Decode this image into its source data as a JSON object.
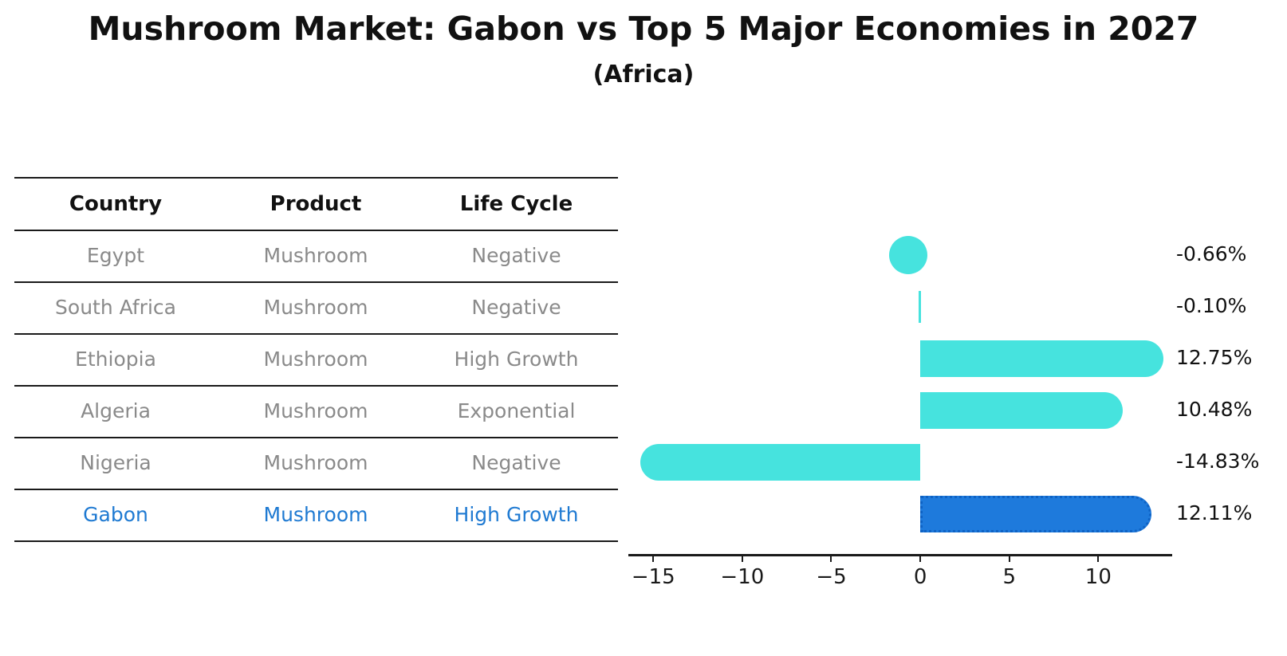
{
  "title": "Mushroom Market: Gabon vs Top 5 Major Economies in 2027",
  "subtitle": "(Africa)",
  "table": {
    "headers": [
      "Country",
      "Product",
      "Life Cycle"
    ],
    "rows": [
      {
        "country": "Egypt",
        "product": "Mushroom",
        "life_cycle": "Negative"
      },
      {
        "country": "South Africa",
        "product": "Mushroom",
        "life_cycle": "Negative"
      },
      {
        "country": "Ethiopia",
        "product": "Mushroom",
        "life_cycle": "High Growth"
      },
      {
        "country": "Algeria",
        "product": "Mushroom",
        "life_cycle": "Exponential"
      },
      {
        "country": "Nigeria",
        "product": "Mushroom",
        "life_cycle": "Negative"
      },
      {
        "country": "Gabon",
        "product": "Mushroom",
        "life_cycle": "High Growth"
      }
    ]
  },
  "chart_data": {
    "type": "bar",
    "orientation": "horizontal",
    "title": "Mushroom Market: Gabon vs Top 5 Major Economies in 2027",
    "subtitle": "(Africa)",
    "categories": [
      "Egypt",
      "South Africa",
      "Ethiopia",
      "Algeria",
      "Nigeria",
      "Gabon"
    ],
    "values": [
      -0.66,
      -0.1,
      12.75,
      10.48,
      -14.83,
      12.11
    ],
    "value_labels": [
      "-0.66%",
      "-0.10%",
      "12.75%",
      "10.48%",
      "-14.83%",
      "12.11%"
    ],
    "x_ticks": {
      "values": [
        -15,
        -10,
        -5,
        0,
        5,
        10
      ],
      "labels": [
        "−15",
        "−10",
        "−5",
        "0",
        "5",
        "10"
      ]
    },
    "xlim": [
      -16.4,
      14.15
    ],
    "grid": false,
    "legend": false,
    "bar_color": "#46E3DE",
    "highlight_index": 5,
    "highlight_color": "#1E7ADC",
    "highlight_border_color": "#0E62C4",
    "highlight_text_color": "#1F7AD2",
    "row_text_color": "#8A8A8A"
  }
}
